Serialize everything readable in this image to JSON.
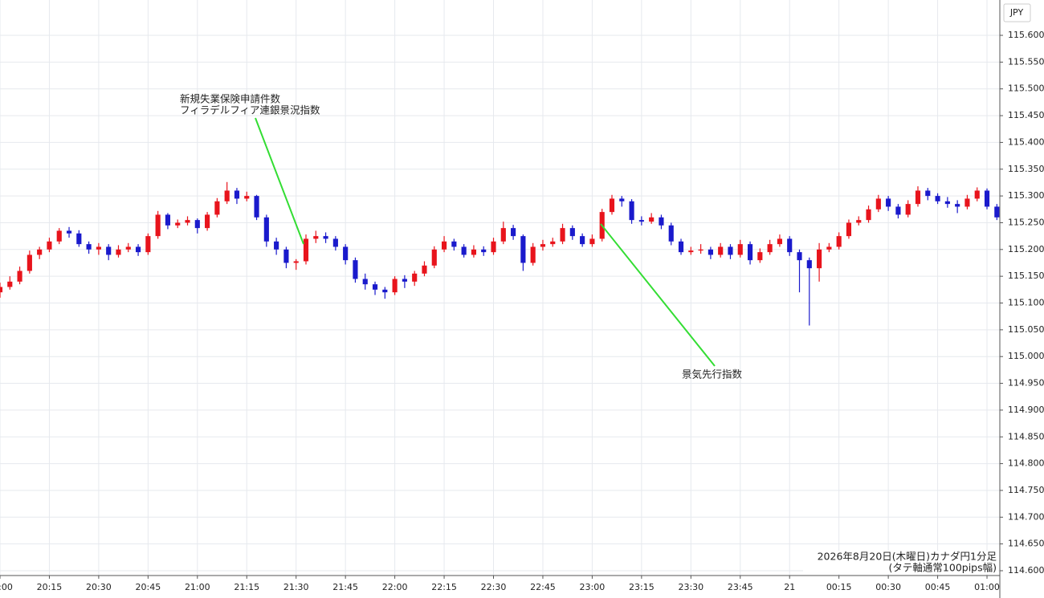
{
  "chart_data": {
    "type": "candlestick",
    "currency": "JPY",
    "caption": [
      "2026年8月20日(木曜日)カナダ円1分足",
      "(タテ軸通常100pips幅)"
    ],
    "annotations": [
      {
        "text": [
          "新規失業保険申請件数",
          "フィラデルフィア連銀景況指数"
        ]
      },
      {
        "text": [
          "景気先行指数"
        ]
      }
    ],
    "up_color": "#e8141c",
    "down_color": "#1a1acc",
    "grid": true,
    "xlim": [
      0,
      101.3
    ],
    "ylim": [
      114.591,
      115.666
    ],
    "xticks": [
      {
        "value": 0,
        "label": "20:00"
      },
      {
        "value": 5,
        "label": "20:15"
      },
      {
        "value": 10,
        "label": "20:30"
      },
      {
        "value": 15,
        "label": "20:45"
      },
      {
        "value": 20,
        "label": "21:00"
      },
      {
        "value": 25,
        "label": "21:15"
      },
      {
        "value": 30,
        "label": "21:30"
      },
      {
        "value": 35,
        "label": "21:45"
      },
      {
        "value": 40,
        "label": "22:00"
      },
      {
        "value": 45,
        "label": "22:15"
      },
      {
        "value": 50,
        "label": "22:30"
      },
      {
        "value": 55,
        "label": "22:45"
      },
      {
        "value": 60,
        "label": "23:00"
      },
      {
        "value": 65,
        "label": "23:15"
      },
      {
        "value": 70,
        "label": "23:30"
      },
      {
        "value": 75,
        "label": "23:45"
      },
      {
        "value": 80,
        "label": "21"
      },
      {
        "value": 85,
        "label": "00:15"
      },
      {
        "value": 90,
        "label": "00:30"
      },
      {
        "value": 95,
        "label": "00:45"
      },
      {
        "value": 100,
        "label": "01:00"
      }
    ],
    "yticks": [
      {
        "value": 114.6,
        "label": "114.600"
      },
      {
        "value": 114.65,
        "label": "114.650"
      },
      {
        "value": 114.7,
        "label": "114.700"
      },
      {
        "value": 114.75,
        "label": "114.750"
      },
      {
        "value": 114.8,
        "label": "114.800"
      },
      {
        "value": 114.85,
        "label": "114.850"
      },
      {
        "value": 114.9,
        "label": "114.900"
      },
      {
        "value": 114.95,
        "label": "114.950"
      },
      {
        "value": 115.0,
        "label": "115.000"
      },
      {
        "value": 115.05,
        "label": "115.050"
      },
      {
        "value": 115.1,
        "label": "115.100"
      },
      {
        "value": 115.15,
        "label": "115.150"
      },
      {
        "value": 115.2,
        "label": "115.200"
      },
      {
        "value": 115.25,
        "label": "115.250"
      },
      {
        "value": 115.3,
        "label": "115.300"
      },
      {
        "value": 115.35,
        "label": "115.350"
      },
      {
        "value": 115.4,
        "label": "115.400"
      },
      {
        "value": 115.45,
        "label": "115.450"
      },
      {
        "value": 115.5,
        "label": "115.500"
      },
      {
        "value": 115.55,
        "label": "115.550"
      },
      {
        "value": 115.6,
        "label": "115.600"
      }
    ],
    "open": [
      115.12,
      115.13,
      115.14,
      115.16,
      115.19,
      115.2,
      115.215,
      115.235,
      115.23,
      115.21,
      115.2,
      115.205,
      115.19,
      115.2,
      115.205,
      115.195,
      115.225,
      115.265,
      115.245,
      115.25,
      115.255,
      115.24,
      115.265,
      115.29,
      115.31,
      115.295,
      115.3,
      115.26,
      115.215,
      115.2,
      115.175,
      115.178,
      115.22,
      115.225,
      115.22,
      115.205,
      115.18,
      115.145,
      115.135,
      115.125,
      115.12,
      115.145,
      115.14,
      115.155,
      115.17,
      115.2,
      115.215,
      115.205,
      115.19,
      115.2,
      115.195,
      115.215,
      115.24,
      115.225,
      115.175,
      115.205,
      115.21,
      115.215,
      115.24,
      115.225,
      115.21,
      115.22,
      115.27,
      115.295,
      115.29,
      115.255,
      115.252,
      115.26,
      115.245,
      115.215,
      115.195,
      115.198,
      115.2,
      115.19,
      115.205,
      115.19,
      115.21,
      115.18,
      115.195,
      115.21,
      115.22,
      115.195,
      115.18,
      115.165,
      115.2,
      115.205,
      115.225,
      115.25,
      115.255,
      115.275,
      115.295,
      115.28,
      115.265,
      115.285,
      115.31,
      115.3,
      115.29,
      115.285,
      115.28,
      115.295,
      115.31,
      115.28
    ],
    "high": [
      115.138,
      115.15,
      115.168,
      115.198,
      115.205,
      115.222,
      115.24,
      115.242,
      115.236,
      115.215,
      115.212,
      115.21,
      115.208,
      115.212,
      115.21,
      115.23,
      115.272,
      115.268,
      115.256,
      115.262,
      115.258,
      115.27,
      115.296,
      115.326,
      115.315,
      115.308,
      115.302,
      115.265,
      115.222,
      115.205,
      115.182,
      115.228,
      115.235,
      115.232,
      115.225,
      115.21,
      115.185,
      115.155,
      115.14,
      115.13,
      115.15,
      115.152,
      115.16,
      115.178,
      115.206,
      115.225,
      115.22,
      115.21,
      115.208,
      115.206,
      115.222,
      115.252,
      115.246,
      115.228,
      115.212,
      115.218,
      115.222,
      115.248,
      115.245,
      115.23,
      115.228,
      115.276,
      115.302,
      115.3,
      115.294,
      115.262,
      115.268,
      115.265,
      115.25,
      115.22,
      115.205,
      115.21,
      115.205,
      115.212,
      115.21,
      115.218,
      115.215,
      115.202,
      115.218,
      115.228,
      115.225,
      115.2,
      115.185,
      115.212,
      115.212,
      115.232,
      115.256,
      115.262,
      115.282,
      115.302,
      115.3,
      115.285,
      115.292,
      115.318,
      115.315,
      115.305,
      115.298,
      115.292,
      115.302,
      115.316,
      115.314,
      115.285
    ],
    "low": [
      115.11,
      115.125,
      115.135,
      115.155,
      115.182,
      115.195,
      115.21,
      115.222,
      115.205,
      115.192,
      115.19,
      115.18,
      115.185,
      115.195,
      115.188,
      115.19,
      115.22,
      115.238,
      115.24,
      115.245,
      115.23,
      115.235,
      115.26,
      115.285,
      115.285,
      115.29,
      115.255,
      115.205,
      115.19,
      115.165,
      115.162,
      115.172,
      115.212,
      115.212,
      115.198,
      115.172,
      115.138,
      115.125,
      115.115,
      115.108,
      115.115,
      115.128,
      115.132,
      115.15,
      115.165,
      115.195,
      115.198,
      115.185,
      115.185,
      115.188,
      115.19,
      115.21,
      115.218,
      115.16,
      115.17,
      115.198,
      115.205,
      115.21,
      115.218,
      115.205,
      115.205,
      115.215,
      115.265,
      115.28,
      115.248,
      115.245,
      115.248,
      115.238,
      115.208,
      115.19,
      115.19,
      115.192,
      115.182,
      115.185,
      115.182,
      115.185,
      115.172,
      115.175,
      115.19,
      115.205,
      115.188,
      115.12,
      115.058,
      115.14,
      115.195,
      115.2,
      115.22,
      115.245,
      115.25,
      115.27,
      115.272,
      115.258,
      115.26,
      115.28,
      115.292,
      115.285,
      115.278,
      115.268,
      115.275,
      115.29,
      115.275,
      115.255
    ],
    "close": [
      115.13,
      115.14,
      115.16,
      115.19,
      115.2,
      115.215,
      115.235,
      115.23,
      115.21,
      115.2,
      115.205,
      115.19,
      115.2,
      115.205,
      115.195,
      115.225,
      115.265,
      115.245,
      115.25,
      115.255,
      115.24,
      115.265,
      115.29,
      115.31,
      115.295,
      115.3,
      115.26,
      115.215,
      115.2,
      115.175,
      115.178,
      115.22,
      115.225,
      115.22,
      115.205,
      115.18,
      115.145,
      115.135,
      115.125,
      115.12,
      115.145,
      115.14,
      115.155,
      115.17,
      115.2,
      115.215,
      115.205,
      115.19,
      115.2,
      115.195,
      115.215,
      115.24,
      115.225,
      115.175,
      115.205,
      115.21,
      115.215,
      115.24,
      115.225,
      115.21,
      115.22,
      115.27,
      115.295,
      115.29,
      115.255,
      115.252,
      115.26,
      115.245,
      115.215,
      115.195,
      115.198,
      115.2,
      115.19,
      115.205,
      115.19,
      115.21,
      115.18,
      115.195,
      115.21,
      115.22,
      115.195,
      115.18,
      115.165,
      115.2,
      115.205,
      115.225,
      115.25,
      115.255,
      115.275,
      115.295,
      115.28,
      115.265,
      115.285,
      115.31,
      115.3,
      115.29,
      115.285,
      115.28,
      115.295,
      115.31,
      115.28,
      115.26
    ]
  }
}
